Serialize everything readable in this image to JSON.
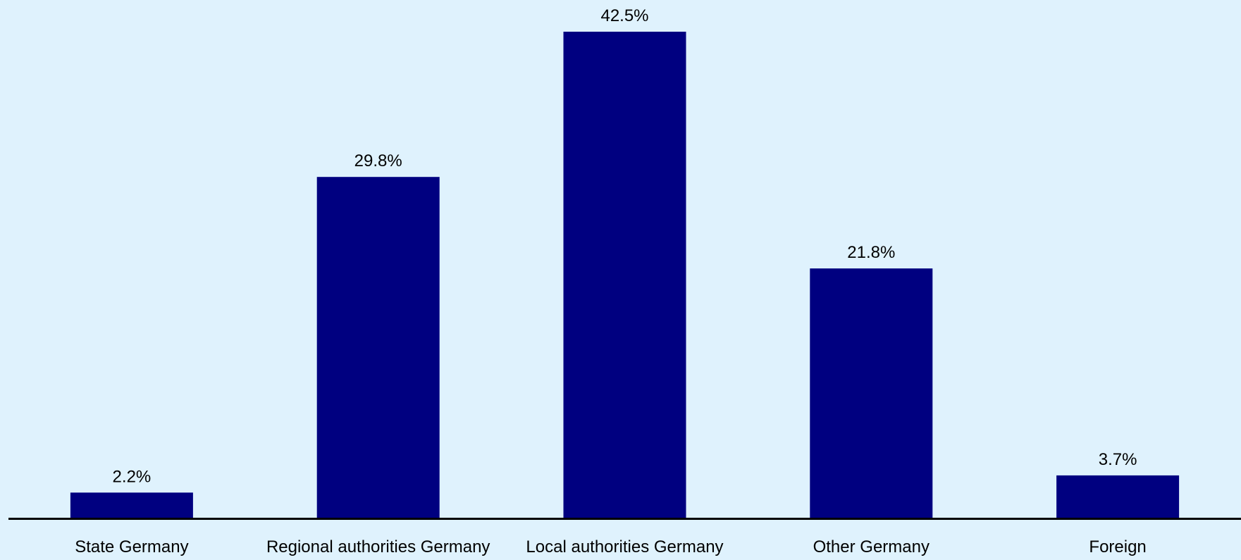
{
  "colors": {
    "background": "#dff2fd",
    "bar": "#000080",
    "axis": "#000000",
    "text": "#000000"
  },
  "chart_data": {
    "type": "bar",
    "categories": [
      "State Germany",
      "Regional authorities Germany",
      "Local authorities Germany",
      "Other Germany",
      "Foreign"
    ],
    "values": [
      2.2,
      29.8,
      42.5,
      21.8,
      3.7
    ],
    "data_labels": [
      "2.2%",
      "29.8%",
      "42.5%",
      "21.8%",
      "3.7%"
    ],
    "unit": "%",
    "title": "",
    "xlabel": "",
    "ylabel": "",
    "ylim": [
      0,
      42.5
    ],
    "grid": false,
    "legend": "none"
  }
}
